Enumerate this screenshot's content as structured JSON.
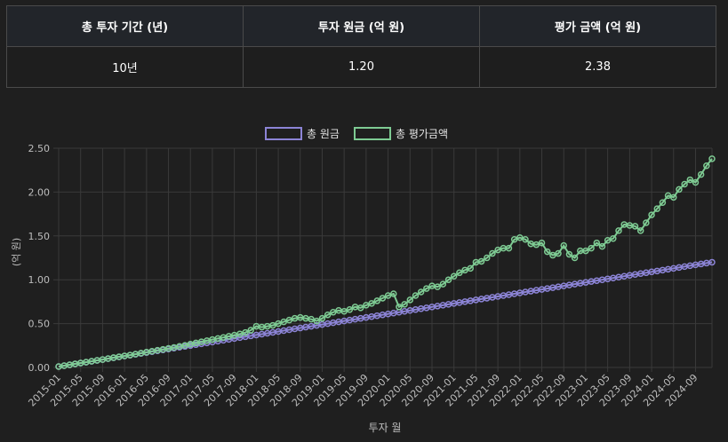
{
  "summary_table": {
    "headers": [
      "총 투자 기간 (년)",
      "투자 원금 (억 원)",
      "평가 금액 (억 원)"
    ],
    "values": [
      "10년",
      "1.20",
      "2.38"
    ]
  },
  "chart_data": {
    "type": "line",
    "xlabel": "투자 월",
    "ylabel": "(억 원)",
    "x_start": "2015-01",
    "x_end": "2024-12",
    "x_tick_labels": [
      "2015-01",
      "2015-05",
      "2015-09",
      "2016-01",
      "2016-05",
      "2016-09",
      "2017-01",
      "2017-05",
      "2017-09",
      "2018-01",
      "2018-05",
      "2018-09",
      "2019-01",
      "2019-05",
      "2019-09",
      "2020-01",
      "2020-05",
      "2020-09",
      "2021-01",
      "2021-05",
      "2021-09",
      "2022-01",
      "2022-05",
      "2022-09",
      "2023-01",
      "2023-05",
      "2023-09",
      "2024-01",
      "2024-05",
      "2024-09"
    ],
    "ylim": [
      0,
      2.5
    ],
    "y_ticks": [
      "0.00",
      "0.50",
      "1.00",
      "1.50",
      "2.00",
      "2.50"
    ],
    "grid": true,
    "legend_position": "top-center",
    "series": [
      {
        "name": "총 원금",
        "color": "#8c84d6",
        "monthly_step": 0.01,
        "values": []
      },
      {
        "name": "총 평가금액",
        "color": "#7ecb93",
        "values": [
          0.01,
          0.02,
          0.03,
          0.041,
          0.051,
          0.061,
          0.071,
          0.081,
          0.09,
          0.101,
          0.112,
          0.122,
          0.132,
          0.141,
          0.152,
          0.163,
          0.174,
          0.185,
          0.196,
          0.206,
          0.217,
          0.228,
          0.24,
          0.252,
          0.266,
          0.279,
          0.292,
          0.305,
          0.318,
          0.33,
          0.342,
          0.355,
          0.368,
          0.382,
          0.398,
          0.425,
          0.47,
          0.46,
          0.47,
          0.48,
          0.5,
          0.52,
          0.54,
          0.56,
          0.57,
          0.56,
          0.55,
          0.53,
          0.56,
          0.6,
          0.63,
          0.65,
          0.64,
          0.66,
          0.69,
          0.68,
          0.71,
          0.73,
          0.76,
          0.79,
          0.82,
          0.84,
          0.69,
          0.72,
          0.77,
          0.82,
          0.86,
          0.9,
          0.93,
          0.92,
          0.95,
          1.0,
          1.04,
          1.08,
          1.11,
          1.13,
          1.2,
          1.21,
          1.25,
          1.3,
          1.34,
          1.36,
          1.36,
          1.46,
          1.48,
          1.46,
          1.41,
          1.4,
          1.42,
          1.32,
          1.28,
          1.3,
          1.39,
          1.29,
          1.25,
          1.33,
          1.33,
          1.36,
          1.42,
          1.38,
          1.45,
          1.47,
          1.56,
          1.63,
          1.62,
          1.61,
          1.56,
          1.65,
          1.74,
          1.81,
          1.88,
          1.96,
          1.94,
          2.03,
          2.09,
          2.14,
          2.11,
          2.2,
          2.3,
          2.38
        ]
      }
    ]
  }
}
